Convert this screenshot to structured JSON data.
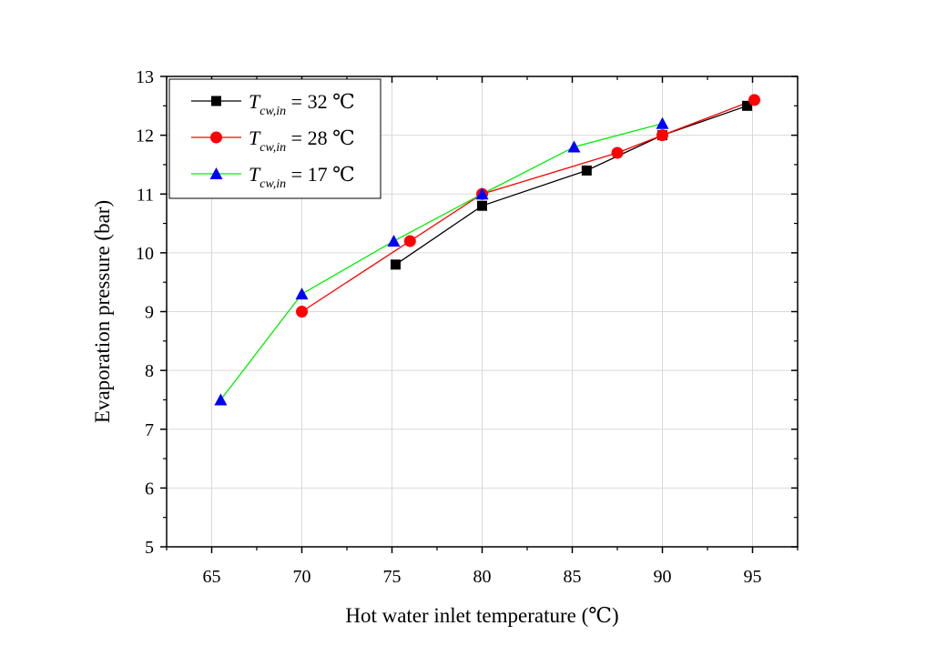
{
  "chart_data": {
    "type": "line",
    "title": "",
    "xlabel": "Hot water inlet temperature (℃)",
    "ylabel": "Evaporation pressure (bar)",
    "xlim": [
      62.5,
      97.5
    ],
    "ylim": [
      5,
      13
    ],
    "x_ticks": [
      65,
      70,
      75,
      80,
      85,
      90,
      95
    ],
    "y_ticks": [
      5,
      6,
      7,
      8,
      9,
      10,
      11,
      12,
      13
    ],
    "x_tick_labels": [
      "65",
      "70",
      "75",
      "80",
      "85",
      "90",
      "95"
    ],
    "y_tick_labels": [
      "5",
      "6",
      "7",
      "8",
      "9",
      "10",
      "11",
      "12",
      "13"
    ],
    "grid": true,
    "legend_position": "top-left",
    "series": [
      {
        "name": "T_cw,in = 32 ℃",
        "label_main": "T",
        "label_sub": "cw,in",
        "label_rest": " = 32 ℃",
        "marker": "square",
        "color": "#000000",
        "line_color": "#000000",
        "x": [
          75.2,
          80.0,
          85.8,
          90.0,
          94.7
        ],
        "y": [
          9.8,
          10.8,
          11.4,
          12.0,
          12.5
        ]
      },
      {
        "name": "T_cw,in = 28 ℃",
        "label_main": "T",
        "label_sub": "cw,in",
        "label_rest": " = 28 ℃",
        "marker": "circle",
        "color": "#ff0000",
        "line_color": "#ff0000",
        "x": [
          70.0,
          76.0,
          80.0,
          87.5,
          90.0,
          95.1
        ],
        "y": [
          9.0,
          10.2,
          11.0,
          11.7,
          12.0,
          12.6
        ]
      },
      {
        "name": "T_cw,in = 17 ℃",
        "label_main": "T",
        "label_sub": "cw,in",
        "label_rest": " = 17 ℃",
        "marker": "triangle",
        "color": "#0000ff",
        "line_color": "#00ee00",
        "x": [
          65.5,
          70.0,
          75.1,
          80.0,
          85.1,
          90.0
        ],
        "y": [
          7.5,
          9.3,
          10.2,
          11.0,
          11.8,
          12.2
        ]
      }
    ]
  }
}
